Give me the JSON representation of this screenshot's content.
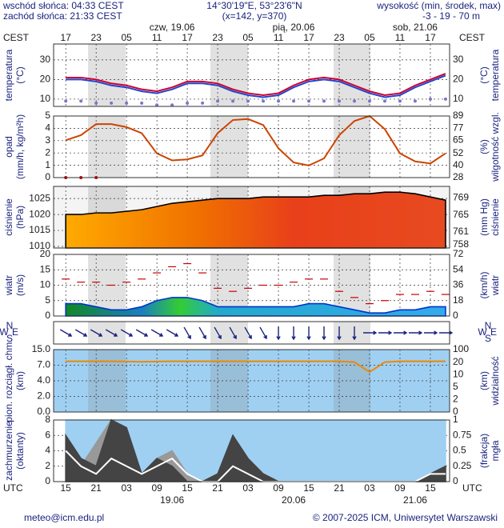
{
  "header": {
    "sunrise": "wschód słońca: 04:33 CEST",
    "sunset": "zachód słońca: 21:33 CEST",
    "coords": "14°30'19\"E, 53°23'6\"N",
    "grid_point": "(x=142,  y=370)",
    "elevation_label": "wysokość (min, środek, max)",
    "elevation": "-3 - 19 - 70 m"
  },
  "footer": {
    "email": "meteo@icm.edu.pl",
    "copyright": "© 2007-2025 ICM, Uniwersytet Warszawski"
  },
  "time_axis": {
    "zone_top": "CEST",
    "zone_bottom": "UTC",
    "xlim": [
      -11.4,
      66.8
    ],
    "x": [
      -9,
      -6,
      -3,
      0,
      3,
      6,
      9,
      12,
      15,
      18,
      21,
      24,
      27,
      30,
      33,
      36,
      39,
      42,
      45,
      48,
      51,
      54,
      57,
      60,
      63,
      66
    ],
    "cest_ticks": [
      {
        "value": -9,
        "label": "17"
      },
      {
        "value": -3,
        "label": "23"
      },
      {
        "value": 3,
        "label": "05"
      },
      {
        "value": 9,
        "label": "11"
      },
      {
        "value": 15,
        "label": "17"
      },
      {
        "value": 21,
        "label": "23"
      },
      {
        "value": 27,
        "label": "05"
      },
      {
        "value": 33,
        "label": "11"
      },
      {
        "value": 39,
        "label": "17"
      },
      {
        "value": 45,
        "label": "23"
      },
      {
        "value": 51,
        "label": "05"
      },
      {
        "value": 57,
        "label": "11"
      },
      {
        "value": 63,
        "label": "17"
      }
    ],
    "utc_ticks": [
      {
        "value": -9,
        "label": "15"
      },
      {
        "value": -3,
        "label": "21"
      },
      {
        "value": 3,
        "label": "03"
      },
      {
        "value": 9,
        "label": "09"
      },
      {
        "value": 15,
        "label": "15"
      },
      {
        "value": 21,
        "label": "21"
      },
      {
        "value": 27,
        "label": "03"
      },
      {
        "value": 33,
        "label": "09"
      },
      {
        "value": 39,
        "label": "15"
      },
      {
        "value": 45,
        "label": "21"
      },
      {
        "value": 51,
        "label": "03"
      },
      {
        "value": 57,
        "label": "09"
      },
      {
        "value": 63,
        "label": "15"
      }
    ],
    "cest_dates": [
      {
        "value": 12,
        "label": "czw, 19.06"
      },
      {
        "value": 36,
        "label": "pią, 20.06"
      },
      {
        "value": 60,
        "label": "sob, 21.06"
      }
    ],
    "utc_dates": [
      {
        "value": 12,
        "label": "19.06"
      },
      {
        "value": 36,
        "label": "20.06"
      },
      {
        "value": 60,
        "label": "21.06"
      }
    ]
  },
  "chart_data": [
    {
      "type": "line",
      "ylabel": [
        "temperatura",
        "(°C)"
      ],
      "y2label": [
        "(°C)",
        "temperatura"
      ],
      "ylim": [
        6.3,
        38.1
      ],
      "yticks": [
        10,
        20,
        30
      ],
      "y2lim": [
        6.3,
        38.1
      ],
      "y2ticks": [
        10,
        20,
        30
      ],
      "grid": true,
      "background": "#ffffff",
      "series": [
        {
          "color": "#7777cc",
          "style": "dots",
          "values": [
            9,
            9,
            8,
            8,
            8,
            8,
            7,
            7,
            8,
            8,
            9,
            9,
            9,
            9,
            9,
            9,
            9,
            9,
            9,
            9,
            9,
            9,
            9,
            9,
            10,
            10
          ]
        },
        {
          "color": "#2244cc",
          "style": "line",
          "values": [
            20,
            20,
            19,
            17,
            16,
            14,
            13,
            15,
            18,
            18,
            17,
            14,
            12,
            11,
            12,
            16,
            19,
            20,
            19,
            16,
            13,
            11,
            12,
            16,
            19,
            22
          ]
        },
        {
          "color": "#cc0033",
          "style": "line",
          "values": [
            21,
            21,
            20,
            18,
            17,
            15,
            14,
            16,
            19,
            19,
            18,
            15,
            13,
            12,
            13,
            17,
            20,
            21,
            20,
            17,
            14,
            12,
            13,
            17,
            20,
            23
          ]
        }
      ]
    },
    {
      "type": "line",
      "ylabel": [
        "opad",
        "(mm/h, kg/m²h)"
      ],
      "y2label": [
        "(%)",
        "wilgotność wzgl."
      ],
      "ylim": [
        0,
        5
      ],
      "yticks": [
        0,
        1,
        2,
        3,
        4,
        5
      ],
      "y2lim": [
        28,
        89
      ],
      "y2ticks": [
        28,
        40,
        52,
        65,
        77,
        89
      ],
      "grid": true,
      "background": "#ffffff",
      "series": [
        {
          "color": "#cc4400",
          "style": "line",
          "axis": "y2",
          "values": [
            65,
            70,
            81,
            81,
            78,
            72,
            52,
            45,
            46,
            50,
            72,
            85,
            86,
            80,
            57,
            43,
            40,
            47,
            70,
            84,
            89,
            76,
            52,
            44,
            42,
            52
          ]
        },
        {
          "color": "#cc0000",
          "style": "dots",
          "values": [
            0,
            0,
            0,
            null,
            null,
            null,
            null,
            null,
            null,
            null,
            null,
            null,
            null,
            null,
            null,
            null,
            null,
            null,
            null,
            null,
            null,
            null,
            null,
            null,
            null,
            null
          ]
        }
      ]
    },
    {
      "type": "area",
      "ylabel": [
        "ciśnienie",
        "(hPa)"
      ],
      "y2label": [
        "(mm Hg)",
        "ciśnienie"
      ],
      "ylim": [
        1009.5,
        1028.8
      ],
      "yticks": [
        1010,
        1015,
        1020,
        1025
      ],
      "y2lim": [
        757.2,
        771.7
      ],
      "y2ticks": [
        758,
        761,
        765,
        769
      ],
      "grid": true,
      "background": "#f4f4f4",
      "series": [
        {
          "color": "#000000",
          "fill": "url(#pressGrad)",
          "style": "area",
          "values": [
            1020,
            1020,
            1020.5,
            1020.5,
            1021,
            1021.5,
            1022.5,
            1023.5,
            1024,
            1024.5,
            1025,
            1025,
            1025,
            1025.5,
            1025.5,
            1025.5,
            1025.5,
            1026,
            1026,
            1026.5,
            1026.5,
            1027,
            1027,
            1026.5,
            1025.5,
            1024.5
          ]
        }
      ]
    },
    {
      "type": "line",
      "ylabel": [
        "wiatr",
        "(m/s)"
      ],
      "y2label": [
        "(km/h)",
        "wiatr"
      ],
      "ylim": [
        0,
        20
      ],
      "yticks": [
        0,
        5,
        10,
        15,
        20
      ],
      "y2lim": [
        0,
        72
      ],
      "y2ticks": [
        0,
        18,
        36,
        54,
        72
      ],
      "grid": true,
      "background": "#ffffff",
      "series": [
        {
          "color": "#0033cc",
          "fill": "url(#windGrad)",
          "style": "area",
          "values": [
            4,
            4,
            3,
            2,
            2,
            3,
            5,
            6,
            6,
            5,
            3,
            3,
            3,
            3,
            3,
            3,
            4,
            4,
            3,
            2,
            1,
            1,
            2,
            2,
            3,
            3
          ]
        },
        {
          "color": "#cc0000",
          "style": "dashes",
          "values": [
            12,
            11,
            11,
            10,
            11,
            12,
            14,
            16,
            17,
            14,
            9,
            8,
            9,
            10,
            10,
            11,
            12,
            12,
            8,
            6,
            4,
            5,
            7,
            7,
            8,
            7
          ]
        }
      ]
    },
    {
      "type": "arrows",
      "compass": [
        "N",
        "W",
        "E",
        "S"
      ],
      "color": "#1a237e",
      "background": "#ffffff",
      "values": [
        300,
        300,
        300,
        300,
        300,
        300,
        300,
        300,
        330,
        330,
        330,
        330,
        330,
        330,
        0,
        0,
        0,
        0,
        0,
        0,
        270,
        270,
        270,
        270,
        270,
        270
      ]
    },
    {
      "type": "line",
      "scale": "ticks",
      "ylabel": [
        "pion. rozciągł. chm.",
        "(km)"
      ],
      "y2label": [
        "(km)",
        "widzialność"
      ],
      "ylim": [
        0,
        15
      ],
      "yticks": [
        {
          "value": 0,
          "label": "0.0"
        },
        {
          "value": 2,
          "label": "2.0"
        },
        {
          "value": 4,
          "label": "4.0"
        },
        {
          "value": 7,
          "label": "7.0"
        },
        {
          "value": 15,
          "label": "15.0"
        }
      ],
      "y2lim": [
        0,
        100
      ],
      "y2ticks": [
        0,
        2,
        5,
        10,
        20,
        100
      ],
      "grid": true,
      "background": "#9fd0f2",
      "series": [
        {
          "color": "#ee8800",
          "style": "line",
          "axis": "y2",
          "values": [
            25,
            25,
            25,
            25,
            24,
            22,
            24,
            25,
            25,
            25,
            25,
            25,
            25,
            25,
            25,
            25,
            25,
            25,
            25,
            20,
            12,
            20,
            25,
            25,
            25,
            25
          ]
        }
      ]
    },
    {
      "type": "area",
      "ylabel": [
        "zachmurzenie",
        "(oktanty)"
      ],
      "y2label": [
        "(frakcja)",
        "mgła"
      ],
      "ylim": [
        0,
        8
      ],
      "yticks": [
        0,
        2,
        4,
        6,
        8
      ],
      "y2lim": [
        0,
        1
      ],
      "y2ticks": [
        0,
        0.25,
        0.5,
        0.75,
        1
      ],
      "grid": true,
      "background": "#ffffff",
      "series": [
        {
          "color": "#9fd0f2",
          "fill": "#9fd0f2",
          "style": "area",
          "values": [
            8,
            8,
            8,
            8,
            8,
            8,
            8,
            8,
            8,
            8,
            8,
            8,
            8,
            8,
            8,
            8,
            8,
            8,
            8,
            8,
            8,
            8,
            8,
            8,
            8,
            8
          ]
        },
        {
          "color": "#999999",
          "fill": "#999999",
          "style": "area",
          "values": [
            3,
            2,
            5,
            8,
            4,
            1,
            3,
            4,
            1,
            0,
            1,
            4,
            2,
            1,
            0,
            0,
            0,
            0,
            0,
            0,
            0,
            0,
            0,
            0,
            1,
            2
          ]
        },
        {
          "color": "#444444",
          "fill": "#444444",
          "style": "area",
          "values": [
            6,
            3,
            2,
            8,
            7,
            1,
            3,
            2,
            0,
            0,
            1,
            6,
            3,
            1,
            0,
            0,
            0,
            0,
            0,
            0,
            0,
            0,
            0,
            0,
            1,
            2
          ]
        },
        {
          "color": "#ffffff",
          "style": "line",
          "values": [
            4,
            2,
            1,
            3,
            2,
            1,
            2,
            3,
            1,
            0,
            0,
            2,
            1,
            0,
            0,
            0,
            0,
            0,
            0,
            0,
            0,
            0,
            0,
            0,
            1,
            1
          ]
        }
      ]
    }
  ]
}
